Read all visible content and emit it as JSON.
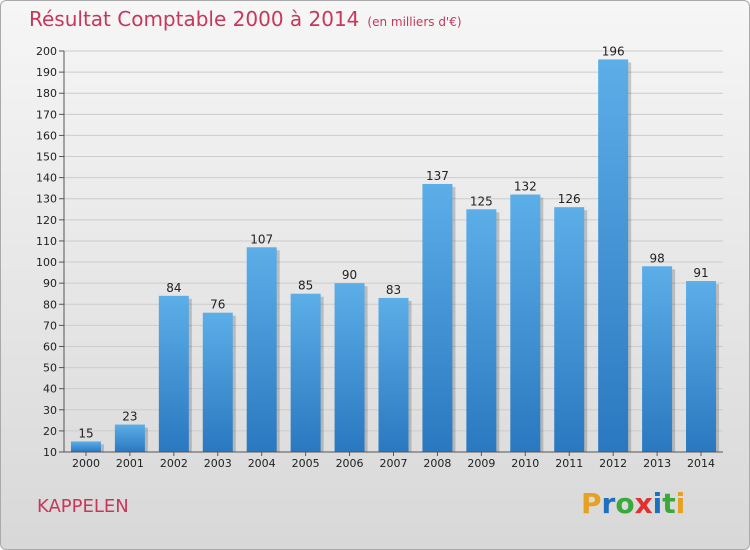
{
  "header": {
    "title": "Résultat Comptable 2000 à 2014",
    "subtitle": "(en milliers d'€)"
  },
  "footer": {
    "commune": "KAPPELEN",
    "logo": "Proxiti",
    "logo_colors": [
      "#e8a020",
      "#1e6fc0",
      "#3aa83a",
      "#e03030",
      "#1e6fc0",
      "#3aa83a",
      "#e8a020"
    ]
  },
  "chart_data": {
    "type": "bar",
    "title": "Résultat Comptable 2000 à 2014",
    "subtitle": "(en milliers d'€)",
    "categories": [
      "2000",
      "2001",
      "2002",
      "2003",
      "2004",
      "2005",
      "2006",
      "2007",
      "2008",
      "2009",
      "2010",
      "2011",
      "2012",
      "2013",
      "2014"
    ],
    "values": [
      15,
      23,
      84,
      76,
      107,
      85,
      90,
      83,
      137,
      125,
      132,
      126,
      196,
      98,
      91
    ],
    "ylim": [
      10,
      200
    ],
    "yticks": [
      10,
      20,
      30,
      40,
      50,
      60,
      70,
      80,
      90,
      100,
      110,
      120,
      130,
      140,
      150,
      160,
      170,
      180,
      190,
      200
    ],
    "grid": true,
    "bar_color": "#3a8fd8"
  }
}
